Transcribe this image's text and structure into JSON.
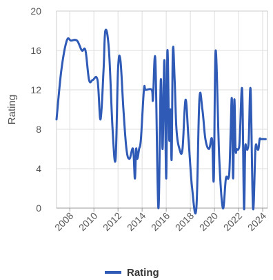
{
  "chart_data": {
    "type": "line",
    "ylabel": "Rating",
    "ylim": [
      0,
      20
    ],
    "yticks": [
      0,
      4,
      8,
      12,
      16,
      20
    ],
    "xlim": [
      2006.9,
      2024.4
    ],
    "xticks": [
      2008,
      2010,
      2012,
      2014,
      2016,
      2018,
      2020,
      2022,
      2024
    ],
    "grid": true,
    "legend_position": "bottom-center",
    "series": [
      {
        "name": "Rating",
        "color": "#2f5bb7",
        "x": [
          2006.9,
          2007.3,
          2007.75,
          2008.1,
          2008.6,
          2009.0,
          2009.3,
          2009.6,
          2009.9,
          2010.3,
          2010.55,
          2010.8,
          2010.95,
          2011.25,
          2011.55,
          2011.8,
          2012.0,
          2012.2,
          2012.45,
          2012.7,
          2012.95,
          2013.25,
          2013.4,
          2013.5,
          2013.6,
          2013.75,
          2013.9,
          2014.15,
          2014.3,
          2014.8,
          2014.9,
          2015.1,
          2015.35,
          2015.55,
          2015.7,
          2015.85,
          2016.0,
          2016.1,
          2016.25,
          2016.35,
          2016.45,
          2016.55,
          2016.7,
          2016.85,
          2017.1,
          2017.35,
          2017.6,
          2017.85,
          2018.15,
          2018.5,
          2018.75,
          2019.0,
          2019.25,
          2019.55,
          2019.8,
          2019.95,
          2020.1,
          2020.4,
          2020.7,
          2020.95,
          2021.15,
          2021.25,
          2021.35,
          2021.45,
          2021.55,
          2021.65,
          2021.75,
          2021.85,
          2022.0,
          2022.1,
          2022.3,
          2022.45,
          2022.55,
          2022.65,
          2022.75,
          2022.85,
          2023.0,
          2023.2,
          2023.4,
          2023.55,
          2023.65,
          2023.75,
          2023.85,
          2023.95,
          2024.1,
          2024.25
        ],
        "values": [
          9,
          14,
          17,
          17,
          17,
          16,
          16,
          13,
          13,
          13,
          9,
          14,
          18,
          16,
          8,
          5,
          14,
          15,
          10,
          6,
          5,
          6,
          3,
          6,
          5,
          6,
          7,
          12,
          12,
          12,
          11,
          15,
          0,
          13,
          6,
          15,
          3,
          16,
          7,
          10,
          5,
          16,
          13,
          8,
          6,
          6,
          11,
          7,
          2,
          0,
          11,
          10,
          7,
          6,
          7,
          3,
          16,
          5,
          0,
          3,
          3,
          4,
          8,
          11,
          3,
          11,
          6,
          6,
          6,
          7,
          12,
          0,
          6,
          6,
          6,
          7,
          12,
          0,
          6,
          6,
          6,
          7,
          7,
          7,
          7,
          7
        ]
      }
    ]
  }
}
